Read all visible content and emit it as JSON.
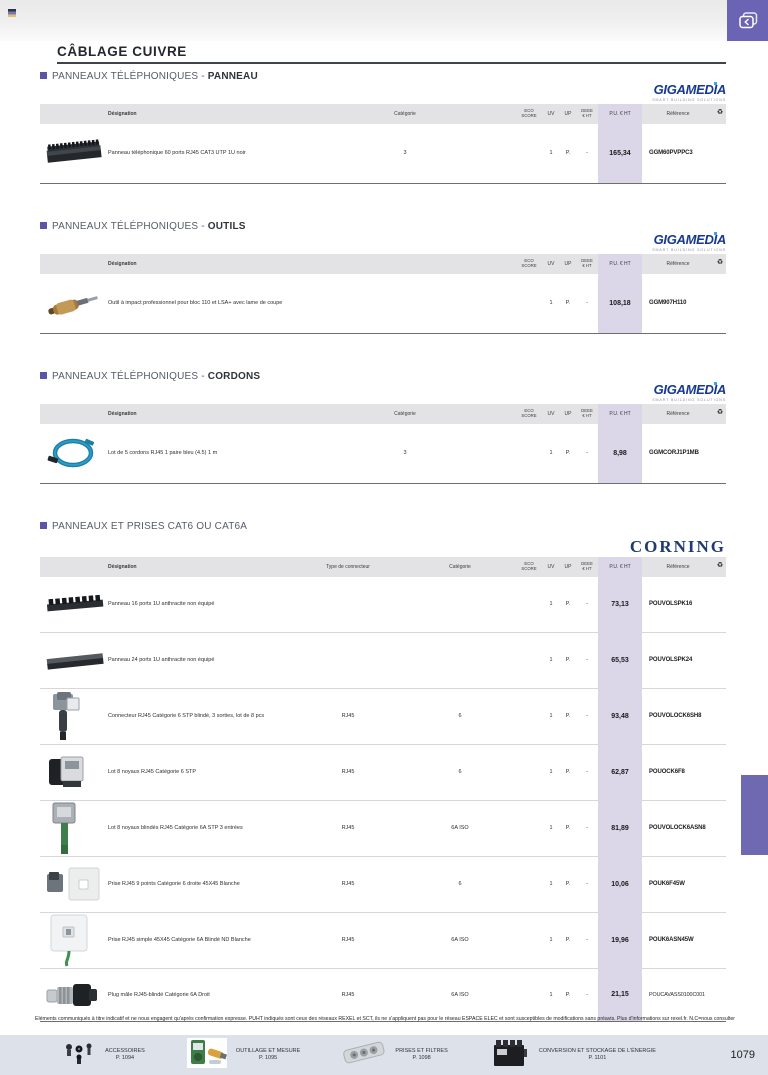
{
  "page": {
    "heading": "CÂBLAGE CUIVRE",
    "page_number": "1079",
    "disclaimer": "Éléments communiqués à titre indicatif et ne nous engagent qu'après confirmation expresse. PUHT indiqués sont ceux des réseaux REXEL et SCT, ils ne s'appliquent pas pour le réseau ESPACE ELEC et sont susceptibles de modifications sans préavis. Plus d'informations sur rexel.fr. N.C=nous consulter.",
    "accent_color": "#6b64b4",
    "price_band_color": "#dbd7e9",
    "recycle_glyph": "♻"
  },
  "sections": [
    {
      "title_prefix": "PANNEAUX TÉLÉPHONIQUES - ",
      "title_suffix": "PANNEAU",
      "brand": {
        "name": "GIGAMEDIA",
        "tagline": "SMART BUILDING SOLUTIONS",
        "style": "gigamedia"
      },
      "layout": "cat",
      "columns": {
        "designation": "Désignation",
        "categorie": "Catégorie",
        "eco": "ECO\nSCORE",
        "uv": "UV",
        "up": "UP",
        "deee": "DEEE\n€ HT",
        "pu": "P.U. € HT",
        "reference": "Référence",
        "icon": "♻"
      },
      "rows": [
        {
          "image": "patch-panel-photo",
          "designation": "Panneau téléphonique 60 ports RJ45 CAT3 UTP 1U noir",
          "categorie": "3",
          "eco": "",
          "uv": "1",
          "up": "P.",
          "deee": "-",
          "pu": "165,34",
          "reference": "GGM60PVPPC3"
        }
      ]
    },
    {
      "title_prefix": "PANNEAUX TÉLÉPHONIQUES - ",
      "title_suffix": "OUTILS",
      "brand": {
        "name": "GIGAMEDIA",
        "tagline": "SMART BUILDING SOLUTIONS",
        "style": "gigamedia"
      },
      "layout": "none",
      "columns": {
        "designation": "Désignation",
        "eco": "ECO\nSCORE",
        "uv": "UV",
        "up": "UP",
        "deee": "DEEE\n€ HT",
        "pu": "P.U. € HT",
        "reference": "Référence",
        "icon": "♻"
      },
      "rows": [
        {
          "image": "impact-tool-photo",
          "designation": "Outil à impact professionnel pour bloc 110 et LSA+ avec lame de coupe",
          "eco": "",
          "uv": "1",
          "up": "P.",
          "deee": "-",
          "pu": "108,18",
          "reference": "GGM907H110"
        }
      ]
    },
    {
      "title_prefix": "PANNEAUX TÉLÉPHONIQUES - ",
      "title_suffix": "CORDONS",
      "brand": {
        "name": "GIGAMEDIA",
        "tagline": "SMART BUILDING SOLUTIONS",
        "style": "gigamedia"
      },
      "layout": "cat",
      "columns": {
        "designation": "Désignation",
        "categorie": "Catégorie",
        "eco": "ECO\nSCORE",
        "uv": "UV",
        "up": "UP",
        "deee": "DEEE\n€ HT",
        "pu": "P.U. € HT",
        "reference": "Référence",
        "icon": "♻"
      },
      "rows": [
        {
          "image": "cable-coil-photo",
          "designation": "Lot de 5 cordons RJ45 1 paire bleu (4.5) 1 m",
          "categorie": "3",
          "eco": "",
          "uv": "1",
          "up": "P.",
          "deee": "-",
          "pu": "8,98",
          "reference": "GGMCORJ1P1MB"
        }
      ]
    },
    {
      "title_prefix": "PANNEAUX ET PRISES CAT6 OU CAT6A",
      "title_suffix": "",
      "brand": {
        "name": "CORNING",
        "style": "corning"
      },
      "layout": "typecat",
      "columns": {
        "designation": "Désignation",
        "type": "Type de connecteur",
        "categorie": "Catégorie",
        "eco": "ECO\nSCORE",
        "uv": "UV",
        "up": "UP",
        "deee": "DEEE\n€ HT",
        "pu": "P.U. € HT",
        "reference": "Référence",
        "icon": "♻"
      },
      "rows": [
        {
          "image": "panel16-photo",
          "designation": "Panneau 16 ports 1U anthracite non équipé",
          "type": "",
          "categorie": "",
          "eco": "",
          "uv": "1",
          "up": "P.",
          "deee": "-",
          "pu": "73,13",
          "reference": "POUVOLSPK16"
        },
        {
          "image": "panel24-photo",
          "designation": "Panneau 24 ports 1U anthracite non équipé",
          "type": "",
          "categorie": "",
          "eco": "",
          "uv": "1",
          "up": "P.",
          "deee": "-",
          "pu": "65,53",
          "reference": "POUVOLSPK24"
        },
        {
          "image": "connector-block-photo",
          "designation": "Connecteur RJ45 Catégorie 6 STP blindé, 3 sorties, lot de 8 pcs",
          "type": "RJ45",
          "categorie": "6",
          "eco": "",
          "uv": "1",
          "up": "P.",
          "deee": "-",
          "pu": "93,48",
          "reference": "POUVOLOCK6SH8"
        },
        {
          "image": "core-kit-photo",
          "designation": "Lot 8 noyaux RJ45 Catégorie 6 STP",
          "type": "RJ45",
          "categorie": "6",
          "eco": "",
          "uv": "1",
          "up": "P.",
          "deee": "-",
          "pu": "62,87",
          "reference": "POUOCK6F8"
        },
        {
          "image": "shielded-core-photo",
          "designation": "Lot 8 noyaux blindés RJ45 Catégorie 6A STP 3 entrées",
          "type": "RJ45",
          "categorie": "6A ISO",
          "eco": "",
          "uv": "1",
          "up": "P.",
          "deee": "-",
          "pu": "81,89",
          "reference": "POUVOLOCK6ASN8"
        },
        {
          "image": "socket-9pin-photo",
          "designation": "Prise RJ45 9 points Catégorie 6 droite 45X45 Blanche",
          "type": "RJ45",
          "categorie": "6",
          "eco": "",
          "uv": "1",
          "up": "P.",
          "deee": "-",
          "pu": "10,06",
          "reference": "POUK6F45W"
        },
        {
          "image": "socket-45x45-photo",
          "designation": "Prise RJ45 simple 45X45 Catégorie 6A Blindé ND Blanche",
          "type": "RJ45",
          "categorie": "6A ISO",
          "eco": "",
          "uv": "1",
          "up": "P.",
          "deee": "-",
          "pu": "19,96",
          "reference": "POUK6ASN45W"
        },
        {
          "image": "plug-male-photo",
          "designation": "Plug mâle RJ45-blindé Catégorie 6A Droit",
          "type": "RJ45",
          "categorie": "6A ISO",
          "eco": "",
          "uv": "1",
          "up": "P.",
          "deee": "-",
          "pu": "21,15",
          "reference": "POUCAVASS0100C001",
          "ref_bold": false
        }
      ]
    }
  ],
  "footer": {
    "links": [
      {
        "icon": "accessories-photo",
        "label": "ACCESSOIRES",
        "page": "P. 1094"
      },
      {
        "icon": "tools-photo",
        "label": "OUTILLAGE ET MESURE",
        "page": "P. 1095"
      },
      {
        "icon": "powerstrip-photo",
        "label": "PRISES ET FILTRES",
        "page": "P. 1098"
      },
      {
        "icon": "battery-photo",
        "label": "CONVERSION ET STOCKAGE DE L'ÉNERGIE",
        "page": "P. 1101"
      }
    ]
  }
}
